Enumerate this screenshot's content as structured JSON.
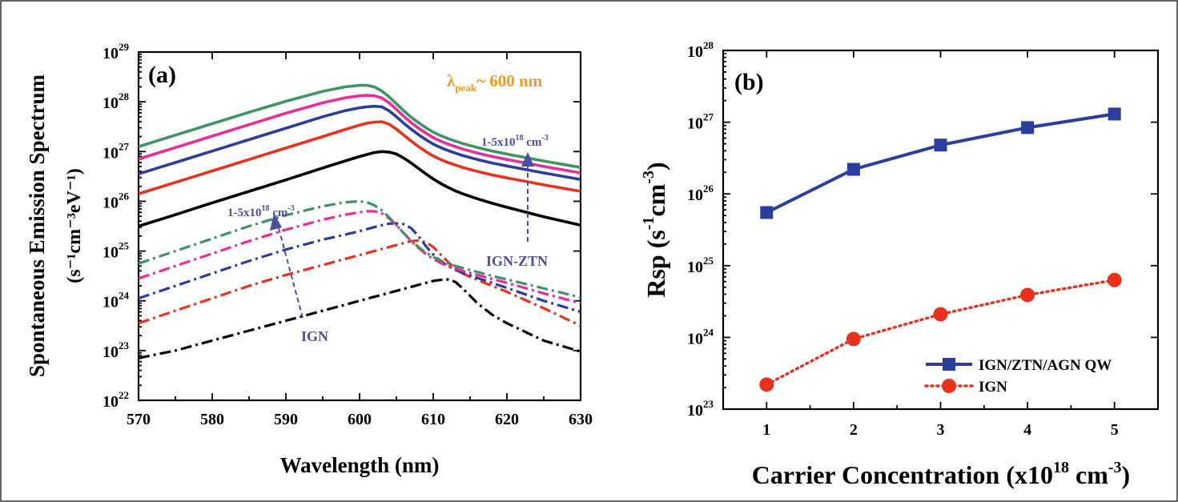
{
  "chart_data": [
    {
      "type": "line",
      "panel_label": "(a)",
      "xlabel": "Wavelength (nm)",
      "ylabel": "Spontaneous Emission Spectrum",
      "ylabel_unit": "(s⁻¹cm⁻³eV⁻¹)",
      "xlim": [
        570,
        630
      ],
      "ylim": [
        1e+22,
        1e+29
      ],
      "yscale": "log",
      "x_ticks": [
        570,
        580,
        590,
        600,
        610,
        620,
        630
      ],
      "y_tick_exponents": [
        22,
        23,
        24,
        25,
        26,
        27,
        28,
        29
      ],
      "y_tick_base": "10",
      "annotations": {
        "peak_lambda": "λ",
        "peak_sub": "peak",
        "peak_rest": "~ 600 nm",
        "range_main": "1-5x10",
        "range_sup": "18",
        "range_unit": " cm",
        "range_unit_sup": "-3",
        "ign_ztn": "IGN-ZTN",
        "ign": "IGN"
      },
      "colors": {
        "n1": "#000000",
        "n2": "#e8321e",
        "n3": "#2b3d9e",
        "n4": "#ea2c9a",
        "n5": "#3f9463",
        "peak_text": "#f39a1e",
        "arrow_text": "#4b4f9c"
      },
      "x": [
        570,
        575,
        580,
        585,
        590,
        595,
        598,
        600,
        601,
        602,
        603,
        604,
        605,
        606,
        607,
        608,
        609,
        610,
        611,
        612,
        613,
        614,
        615,
        616,
        618,
        620,
        625,
        630
      ],
      "series_ign_ztn": [
        {
          "key": "n1",
          "y_log": [
            25.5,
            25.73,
            25.97,
            26.2,
            26.43,
            26.67,
            26.81,
            26.9,
            26.94,
            26.98,
            27.0,
            26.99,
            26.95,
            26.87,
            26.77,
            26.66,
            26.55,
            26.45,
            26.36,
            26.28,
            26.21,
            26.15,
            26.1,
            26.05,
            25.96,
            25.88,
            25.69,
            25.52
          ]
        },
        {
          "key": "n2",
          "y_log": [
            26.15,
            26.38,
            26.61,
            26.84,
            27.07,
            27.3,
            27.44,
            27.53,
            27.57,
            27.59,
            27.6,
            27.55,
            27.45,
            27.33,
            27.21,
            27.1,
            27.0,
            26.91,
            26.84,
            26.78,
            26.73,
            26.68,
            26.64,
            26.6,
            26.53,
            26.47,
            26.33,
            26.2
          ]
        },
        {
          "key": "n3",
          "y_log": [
            26.55,
            26.78,
            27.01,
            27.24,
            27.47,
            27.7,
            27.82,
            27.88,
            27.9,
            27.91,
            27.9,
            27.82,
            27.7,
            27.57,
            27.45,
            27.34,
            27.24,
            27.15,
            27.08,
            27.02,
            26.97,
            26.92,
            26.88,
            26.84,
            26.77,
            26.71,
            26.57,
            26.44
          ]
        },
        {
          "key": "n4",
          "y_log": [
            26.85,
            27.08,
            27.31,
            27.54,
            27.77,
            27.98,
            28.08,
            28.12,
            28.13,
            28.12,
            28.08,
            27.98,
            27.85,
            27.71,
            27.58,
            27.47,
            27.37,
            27.28,
            27.21,
            27.15,
            27.1,
            27.05,
            27.01,
            26.97,
            26.9,
            26.84,
            26.7,
            26.57
          ]
        },
        {
          "key": "n5",
          "y_log": [
            27.1,
            27.33,
            27.56,
            27.79,
            28.01,
            28.21,
            28.3,
            28.33,
            28.33,
            28.3,
            28.22,
            28.1,
            27.96,
            27.82,
            27.69,
            27.58,
            27.48,
            27.39,
            27.32,
            27.26,
            27.21,
            27.16,
            27.12,
            27.08,
            27.01,
            26.95,
            26.81,
            26.68
          ]
        }
      ],
      "series_ign": [
        {
          "key": "n1",
          "y_log": [
            22.85,
            23.0,
            23.2,
            23.4,
            23.6,
            23.8,
            23.92,
            24.0,
            24.04,
            24.08,
            24.12,
            24.16,
            24.2,
            24.24,
            24.28,
            24.32,
            24.36,
            24.4,
            24.42,
            24.43,
            24.38,
            24.25,
            24.1,
            23.95,
            23.72,
            23.55,
            23.2,
            22.98
          ]
        },
        {
          "key": "n2",
          "y_log": [
            23.55,
            23.8,
            24.05,
            24.3,
            24.52,
            24.72,
            24.84,
            24.92,
            24.96,
            25.0,
            25.04,
            25.08,
            25.12,
            25.16,
            25.2,
            25.21,
            25.18,
            25.08,
            24.93,
            24.78,
            24.65,
            24.55,
            24.48,
            24.42,
            24.3,
            24.18,
            23.85,
            23.5
          ]
        },
        {
          "key": "n3",
          "y_log": [
            24.05,
            24.3,
            24.55,
            24.8,
            25.03,
            25.23,
            25.33,
            25.4,
            25.44,
            25.48,
            25.52,
            25.55,
            25.56,
            25.54,
            25.46,
            25.3,
            25.1,
            24.93,
            24.8,
            24.7,
            24.62,
            24.56,
            24.51,
            24.46,
            24.36,
            24.26,
            24.0,
            23.78
          ]
        },
        {
          "key": "n4",
          "y_log": [
            24.45,
            24.7,
            24.95,
            25.2,
            25.43,
            25.63,
            25.73,
            25.78,
            25.8,
            25.8,
            25.76,
            25.66,
            25.52,
            25.36,
            25.2,
            25.06,
            24.94,
            24.84,
            24.76,
            24.7,
            24.65,
            24.6,
            24.56,
            24.52,
            24.44,
            24.36,
            24.15,
            23.95
          ]
        },
        {
          "key": "n5",
          "y_log": [
            24.75,
            25.0,
            25.25,
            25.5,
            25.72,
            25.9,
            25.98,
            26.0,
            25.98,
            25.92,
            25.82,
            25.68,
            25.52,
            25.36,
            25.21,
            25.08,
            24.97,
            24.88,
            24.81,
            24.75,
            24.7,
            24.66,
            24.62,
            24.58,
            24.5,
            24.43,
            24.25,
            24.07
          ]
        }
      ]
    },
    {
      "type": "line",
      "panel_label": "(b)",
      "xlabel_main": "Carrier Concentration (x10",
      "xlabel_sup": "18",
      "xlabel_unit": " cm",
      "xlabel_unit_sup": "-3",
      "xlabel_end": ")",
      "ylabel_main": "Rsp (s",
      "ylabel_sup1": "-1",
      "ylabel_mid": "cm",
      "ylabel_sup2": "-3",
      "ylabel_end": ")",
      "xlim": [
        0.5,
        5.5
      ],
      "ylim": [
        1e+23,
        1e+28
      ],
      "yscale": "log",
      "x_ticks": [
        1,
        2,
        3,
        4,
        5
      ],
      "y_tick_exponents": [
        23,
        24,
        25,
        26,
        27,
        28
      ],
      "y_tick_base": "10",
      "x": [
        1,
        2,
        3,
        4,
        5
      ],
      "series": [
        {
          "name": "IGN/ZTN/AGN QW",
          "marker": "square",
          "color": "#2b3d9e",
          "values": [
            5.5e+25,
            2.2e+26,
            4.8e+26,
            8.4e+26,
            1.3e+27
          ]
        },
        {
          "name": "IGN",
          "marker": "circle",
          "color": "#e8321e",
          "values": [
            2.2e+23,
            9.5e+23,
            2.1e+24,
            3.9e+24,
            6.3e+24
          ]
        }
      ],
      "legend_position": "bottom-right"
    }
  ]
}
